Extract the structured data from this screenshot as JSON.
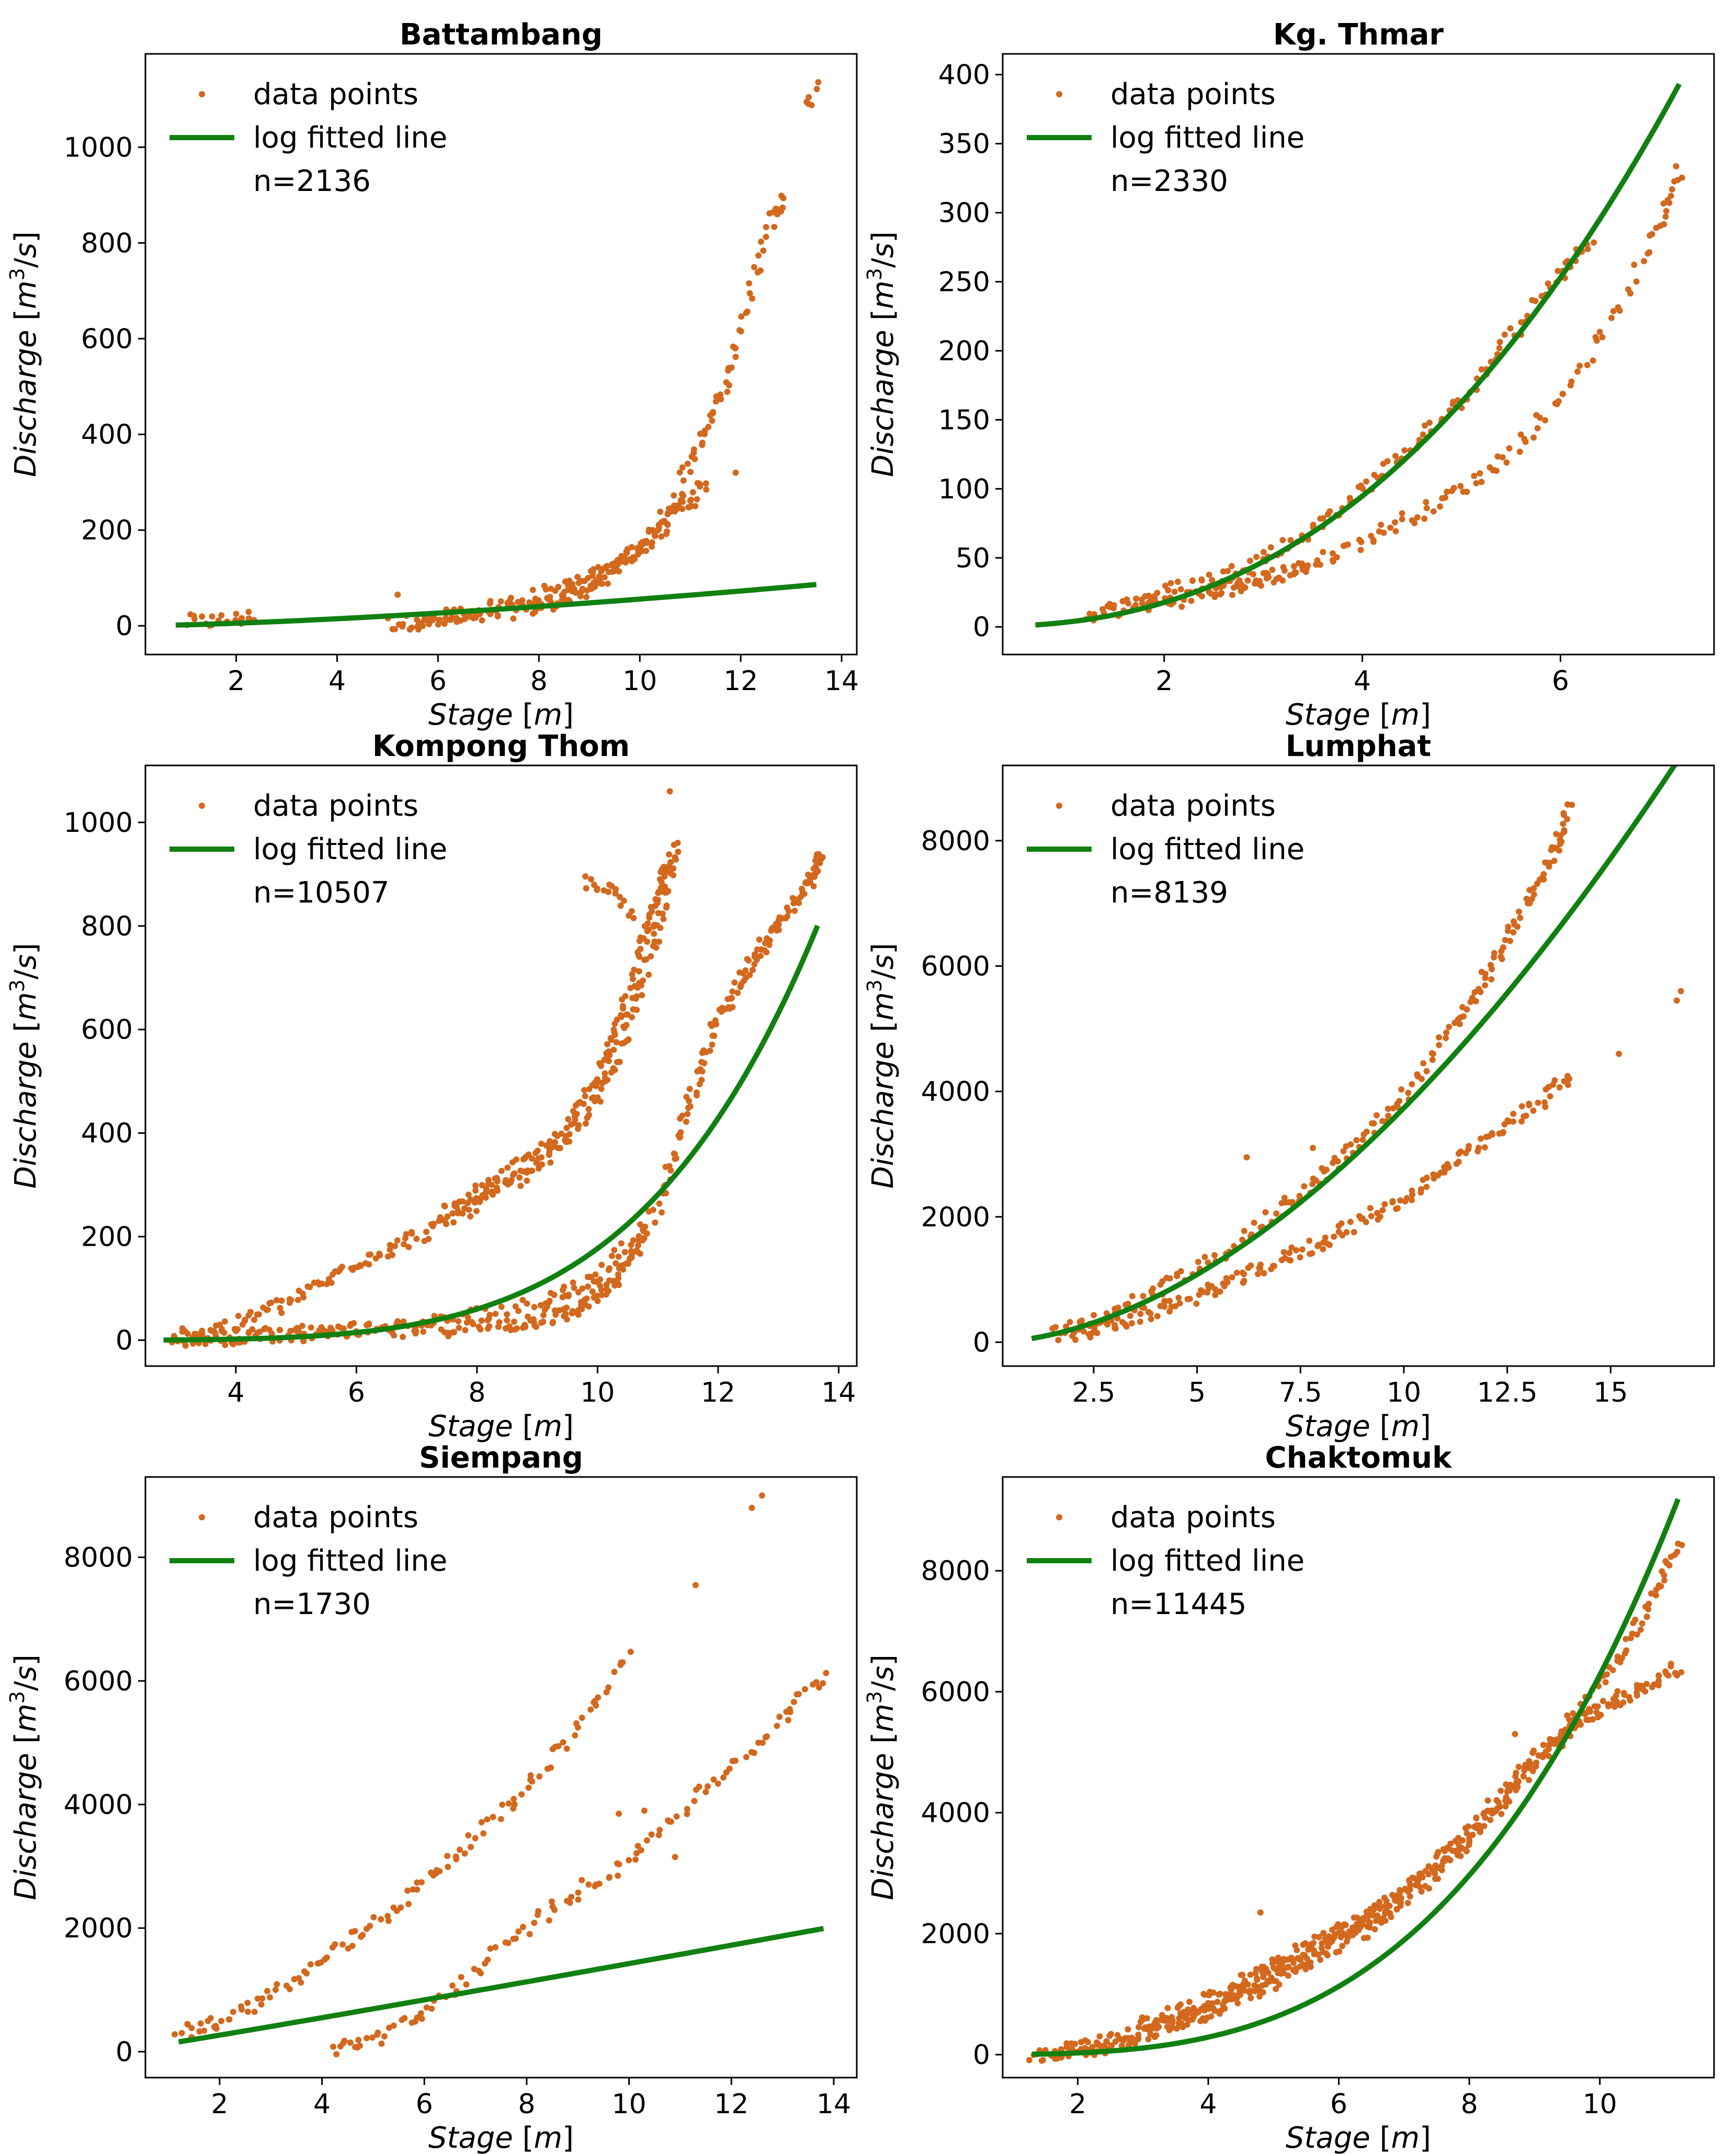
{
  "chart_data": [
    {
      "type": "scatter",
      "title": "Battambang",
      "xlabel": "Stage [m]",
      "ylabel": "Discharge [m3/s]",
      "xlim": [
        0.2,
        14.3
      ],
      "ylim": [
        -60,
        1195
      ],
      "xticks": [
        2,
        4,
        6,
        8,
        10,
        12,
        14
      ],
      "yticks": [
        0,
        200,
        400,
        600,
        800,
        1000
      ],
      "legend": {
        "position": "upper-left",
        "points_label": "data points",
        "line_label": "log fitted line",
        "n_label": "n=2136"
      },
      "points_color": "#d2691e",
      "line_color": "#118011",
      "fit": {
        "a": 1.98,
        "b": 1.45,
        "x_range": [
          0.8,
          13.5
        ]
      },
      "branches": [
        {
          "x": [
            1.0,
            1.5,
            2.0,
            2.3
          ],
          "y": [
            8,
            10,
            14,
            18
          ],
          "n": 22
        },
        {
          "x": [
            5.0,
            6.0,
            7.0,
            8.0,
            8.5,
            9.0,
            9.5,
            10.0,
            10.5,
            10.8
          ],
          "y": [
            5,
            10,
            20,
            40,
            55,
            80,
            120,
            165,
            225,
            265
          ],
          "n": 140
        },
        {
          "x": [
            5.5,
            6.5,
            7.5,
            8.5,
            9.2,
            10.0,
            10.8,
            11.3
          ],
          "y": [
            8,
            25,
            50,
            80,
            110,
            160,
            240,
            300
          ],
          "n": 110
        },
        {
          "x": [
            10.8,
            11.2,
            11.5,
            11.8,
            12.2,
            12.6,
            12.8
          ],
          "y": [
            300,
            390,
            450,
            550,
            700,
            850,
            890
          ],
          "n": 60
        },
        {
          "x": [
            13.3,
            13.4,
            13.5
          ],
          "y": [
            1080,
            1110,
            1140
          ],
          "n": 6
        }
      ],
      "outliers": [
        {
          "x": 5.2,
          "y": 65
        },
        {
          "x": 11.9,
          "y": 320
        },
        {
          "x": 11.1,
          "y": 250
        }
      ]
    },
    {
      "type": "scatter",
      "title": "Kg. Thmar",
      "xlabel": "Stage [m]",
      "ylabel": "Discharge [m3/s]",
      "xlim": [
        0.37,
        7.55
      ],
      "ylim": [
        -20,
        415
      ],
      "xticks": [
        2,
        4,
        6
      ],
      "yticks": [
        0,
        50,
        100,
        150,
        200,
        250,
        300,
        350,
        400
      ],
      "legend": {
        "position": "upper-left",
        "points_label": "data points",
        "line_label": "log fitted line",
        "n_label": "n=2330"
      },
      "points_color": "#d2691e",
      "line_color": "#118011",
      "fit": {
        "a": 3.31,
        "b": 2.42,
        "x_range": [
          0.7,
          7.2
        ]
      },
      "branches": [
        {
          "x": [
            1.2,
            1.6,
            2.0,
            2.5,
            3.0,
            3.5,
            4.0,
            4.5,
            5.0,
            5.5,
            6.0,
            6.3
          ],
          "y": [
            8,
            15,
            25,
            35,
            50,
            70,
            100,
            130,
            165,
            210,
            255,
            280
          ],
          "n": 160
        },
        {
          "x": [
            1.8,
            2.2,
            2.6,
            3.0,
            3.5
          ],
          "y": [
            15,
            20,
            28,
            35,
            45
          ],
          "n": 45
        },
        {
          "x": [
            2.5,
            3.0,
            3.5,
            4.0,
            4.5,
            5.0,
            5.5,
            6.0,
            6.5,
            7.0,
            7.2
          ],
          "y": [
            25,
            35,
            45,
            62,
            80,
            100,
            125,
            165,
            220,
            290,
            330
          ],
          "n": 130
        }
      ],
      "outliers": []
    },
    {
      "type": "scatter",
      "title": "Kompong Thom",
      "xlabel": "Stage [m]",
      "ylabel": "Discharge [m3/s]",
      "xlim": [
        2.5,
        14.3
      ],
      "ylim": [
        -50,
        1110
      ],
      "xticks": [
        4,
        6,
        8,
        10,
        12,
        14
      ],
      "yticks": [
        0,
        200,
        400,
        600,
        800,
        1000
      ],
      "legend": {
        "position": "upper-left",
        "points_label": "data points",
        "line_label": "log fitted line",
        "n_label": "n=10507"
      },
      "points_color": "#d2691e",
      "line_color": "#118011",
      "fit": {
        "a": 0.0025,
        "b": 4.85,
        "x_range": [
          2.8,
          13.65
        ]
      },
      "branches": [
        {
          "x": [
            3.0,
            5.0,
            7.0,
            9.0,
            10.0,
            11.0,
            11.5,
            12.0,
            12.5,
            13.0,
            13.5,
            13.7
          ],
          "y": [
            5,
            15,
            30,
            70,
            120,
            250,
            450,
            620,
            720,
            800,
            880,
            930
          ],
          "n": 260
        },
        {
          "x": [
            3.0,
            4.0,
            5.0,
            6.0,
            7.0,
            8.0,
            9.0,
            10.0,
            10.5,
            11.0,
            11.3
          ],
          "y": [
            8,
            30,
            80,
            150,
            200,
            260,
            330,
            460,
            600,
            800,
            950
          ],
          "n": 220
        },
        {
          "x": [
            3.0,
            5.0,
            7.0,
            8.5,
            9.5,
            10.2,
            10.8
          ],
          "y": [
            2,
            10,
            18,
            30,
            50,
            100,
            200
          ],
          "n": 160
        },
        {
          "x": [
            7.5,
            8.5,
            9.5,
            10.2,
            10.8,
            11.2
          ],
          "y": [
            250,
            320,
            400,
            560,
            780,
            930
          ],
          "n": 150
        },
        {
          "x": [
            9.8,
            10.2,
            10.6
          ],
          "y": [
            885,
            880,
            820
          ],
          "n": 18
        }
      ],
      "outliers": [
        {
          "x": 11.2,
          "y": 1060
        }
      ]
    },
    {
      "type": "scatter",
      "title": "Lumphat",
      "xlabel": "Stage [m]",
      "ylabel": "Discharge [m3/s]",
      "xlim": [
        0.3,
        17.5
      ],
      "ylim": [
        -380,
        9200
      ],
      "xticks": [
        2.5,
        5.0,
        7.5,
        10.0,
        12.5,
        15.0
      ],
      "yticks": [
        0,
        2000,
        4000,
        6000,
        8000
      ],
      "legend": {
        "position": "upper-left",
        "points_label": "data points",
        "line_label": "log fitted line",
        "n_label": "n=8139"
      },
      "points_color": "#d2691e",
      "line_color": "#118011",
      "fit": {
        "a": 60.6,
        "b": 1.79,
        "x_range": [
          1.0,
          16.7
        ]
      },
      "branches": [
        {
          "x": [
            1.5,
            3.0,
            5.0,
            7.0,
            8.5,
            10.0,
            11.5,
            12.5,
            13.5,
            14.0
          ],
          "y": [
            120,
            450,
            1150,
            2100,
            2900,
            3900,
            5300,
            6400,
            7600,
            8500
          ],
          "n": 200
        },
        {
          "x": [
            2.0,
            4.0,
            6.0,
            8.0,
            10.0,
            12.0,
            14.0
          ],
          "y": [
            100,
            500,
            1000,
            1600,
            2300,
            3200,
            4200
          ],
          "n": 180
        }
      ],
      "outliers": [
        {
          "x": 6.2,
          "y": 2950
        },
        {
          "x": 14.0,
          "y": 4200
        },
        {
          "x": 15.2,
          "y": 4600
        },
        {
          "x": 16.6,
          "y": 5450
        },
        {
          "x": 16.7,
          "y": 5600
        },
        {
          "x": 7.8,
          "y": 3100
        }
      ]
    },
    {
      "type": "scatter",
      "title": "Siempang",
      "xlabel": "Stage [m]",
      "ylabel": "Discharge [m3/s]",
      "xlim": [
        0.55,
        14.45
      ],
      "ylim": [
        -420,
        9300
      ],
      "xticks": [
        2,
        4,
        6,
        8,
        10,
        12,
        14
      ],
      "yticks": [
        0,
        2000,
        4000,
        6000,
        8000
      ],
      "legend": {
        "position": "upper-left",
        "points_label": "data points",
        "line_label": "log fitted line",
        "n_label": "n=1730"
      },
      "points_color": "#d2691e",
      "line_color": "#118011",
      "fit": {
        "a": 130,
        "b": 1.04,
        "x_range": [
          1.2,
          13.8
        ]
      },
      "branches": [
        {
          "x": [
            1.2,
            2.0,
            3.0,
            4.0,
            5.0,
            6.0,
            7.0,
            8.0,
            9.0,
            10.0
          ],
          "y": [
            300,
            500,
            900,
            1450,
            2050,
            2750,
            3450,
            4300,
            5300,
            6400
          ],
          "n": 120
        },
        {
          "x": [
            4.2,
            5.0,
            6.0,
            7.0,
            8.0,
            9.0,
            10.0,
            11.0,
            12.0,
            13.0,
            13.8
          ],
          "y": [
            50,
            200,
            600,
            1300,
            2000,
            2600,
            3100,
            3900,
            4600,
            5400,
            6100
          ],
          "n": 120
        }
      ],
      "outliers": [
        {
          "x": 11.3,
          "y": 7550
        },
        {
          "x": 12.4,
          "y": 8800
        },
        {
          "x": 12.6,
          "y": 9000
        },
        {
          "x": 10.3,
          "y": 3900
        },
        {
          "x": 10.9,
          "y": 3150
        },
        {
          "x": 9.8,
          "y": 3850
        }
      ]
    },
    {
      "type": "scatter",
      "title": "Chaktomuk",
      "xlabel": "Stage [m]",
      "ylabel": "Discharge [m3/s]",
      "xlim": [
        0.85,
        11.75
      ],
      "ylim": [
        -380,
        9550
      ],
      "xticks": [
        2,
        4,
        6,
        8,
        10
      ],
      "yticks": [
        0,
        2000,
        4000,
        6000,
        8000
      ],
      "legend": {
        "position": "upper-left",
        "points_label": "data points",
        "line_label": "log fitted line",
        "n_label": "n=11445"
      },
      "points_color": "#d2691e",
      "line_color": "#118011",
      "fit": {
        "a": 2.74,
        "b": 3.36,
        "x_range": [
          1.3,
          11.2
        ]
      },
      "branches": [
        {
          "x": [
            1.3,
            2.5,
            4.0,
            5.5,
            7.0,
            8.0,
            9.0,
            10.0,
            11.2
          ],
          "y": [
            0,
            150,
            700,
            1600,
            2700,
            3700,
            4900,
            5700,
            6400
          ],
          "n": 320
        },
        {
          "x": [
            2.0,
            3.5,
            5.0,
            6.5,
            7.5,
            8.5,
            9.5,
            10.5,
            11.2
          ],
          "y": [
            100,
            500,
            1200,
            2100,
            3000,
            4100,
            5400,
            6900,
            8400
          ],
          "n": 220
        },
        {
          "x": [
            3.0,
            4.0,
            5.0,
            6.0,
            7.0
          ],
          "y": [
            500,
            900,
            1500,
            2000,
            2600
          ],
          "n": 140
        }
      ],
      "outliers": [
        {
          "x": 8.7,
          "y": 5300
        },
        {
          "x": 4.8,
          "y": 2350
        }
      ]
    }
  ]
}
